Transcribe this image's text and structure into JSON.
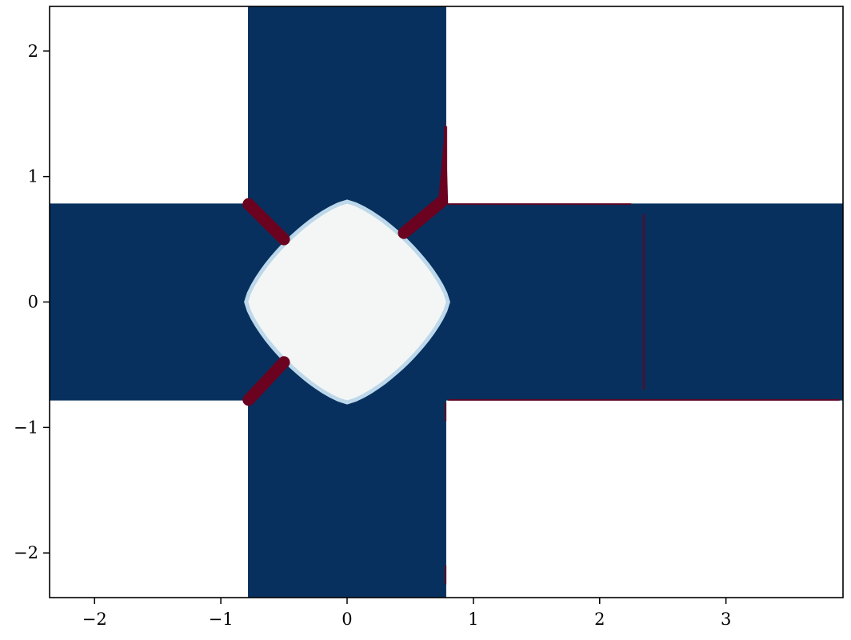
{
  "chart_data": {
    "type": "heatmap",
    "title": "",
    "xlabel": "",
    "ylabel": "",
    "xlim": [
      -2.356,
      3.927
    ],
    "ylim": [
      -2.356,
      2.356
    ],
    "x_ticks": [
      -2,
      -1,
      0,
      1,
      2,
      3
    ],
    "y_ticks": [
      -2,
      -1,
      0,
      1,
      2
    ],
    "x_tick_labels": [
      "−2",
      "−1",
      "0",
      "1",
      "2",
      "3"
    ],
    "y_tick_labels": [
      "−2",
      "−1",
      "0",
      "1",
      "2"
    ],
    "colormap": "RdBu",
    "colors": {
      "background": "#ffffff",
      "cross": "#08305e",
      "center": "#f4f6f6",
      "edge": "#6a0220",
      "edge_light": "#bcd8ea"
    },
    "regions": {
      "background_quadrants": {
        "description_value": "white"
      },
      "cross_bands": {
        "vertical_x": [
          -0.785,
          0.785
        ],
        "horizontal_y": [
          -0.785,
          0.785
        ]
      },
      "center_blob_radius": 0.8
    },
    "streaks": [
      {
        "from": [
          -0.78,
          0.78
        ],
        "to": [
          -0.5,
          0.5
        ]
      },
      {
        "from": [
          0.45,
          0.55
        ],
        "to": [
          0.75,
          0.8
        ]
      },
      {
        "from": [
          -0.78,
          -0.78
        ],
        "to": [
          -0.5,
          -0.48
        ]
      }
    ]
  }
}
